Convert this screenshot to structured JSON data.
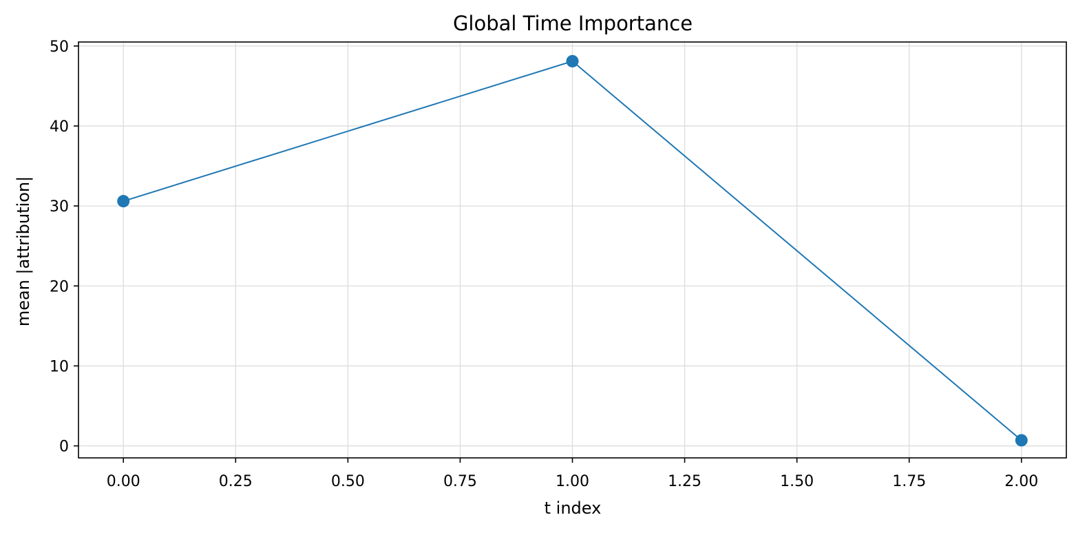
{
  "chart_data": {
    "type": "line",
    "title": "Global Time Importance",
    "xlabel": "t index",
    "ylabel": "mean |attribution|",
    "xlim": [
      -0.1,
      2.1
    ],
    "ylim": [
      -1.5,
      50.5
    ],
    "xticks": [
      0.0,
      0.25,
      0.5,
      0.75,
      1.0,
      1.25,
      1.5,
      1.75,
      2.0
    ],
    "xtick_labels": [
      "0.00",
      "0.25",
      "0.50",
      "0.75",
      "1.00",
      "1.25",
      "1.50",
      "1.75",
      "2.00"
    ],
    "yticks": [
      0,
      10,
      20,
      30,
      40,
      50
    ],
    "ytick_labels": [
      "0",
      "10",
      "20",
      "30",
      "40",
      "50"
    ],
    "grid": true,
    "series": [
      {
        "x": [
          0,
          1,
          2
        ],
        "values": [
          30.6,
          48.1,
          0.7
        ],
        "color": "#1f77b4",
        "marker": "circle"
      }
    ]
  }
}
